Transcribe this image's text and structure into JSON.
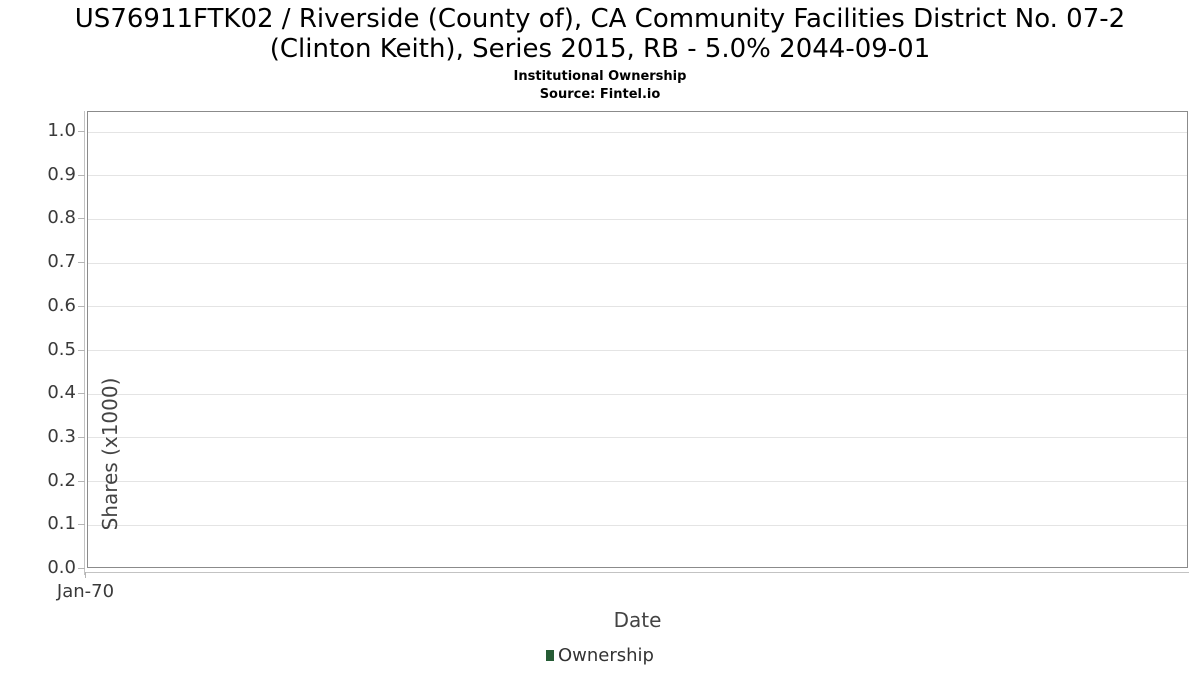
{
  "colors": {
    "background": "#ffffff",
    "title_text": "#000000",
    "tick_text": "#3a3a3a",
    "axis_label_text": "#444444",
    "legend_text": "#333333",
    "gridline": "#e4e4e4",
    "plot_border": "#8b8b8b",
    "axis_line": "#c3c3c3",
    "ownership_series": "#265c35"
  },
  "header": {
    "title_lines": [
      "US76911FTK02 / Riverside (County of), CA Community Facilities District No. 07-2",
      "(Clinton Keith), Series 2015, RB - 5.0% 2044-09-01"
    ],
    "subtitle": "Institutional Ownership",
    "source": "Source: Fintel.io"
  },
  "chart_data": {
    "type": "line",
    "title": "US76911FTK02 / Riverside (County of), CA Community Facilities District No. 07-2 (Clinton Keith), Series 2015, RB - 5.0% 2044-09-01",
    "subtitle": "Institutional Ownership",
    "source": "Source: Fintel.io",
    "xlabel": "Date",
    "ylabel": "Shares (x1000)",
    "x_tick_labels": [
      "Jan-70"
    ],
    "y_tick_labels": [
      "0.0",
      "0.1",
      "0.2",
      "0.3",
      "0.4",
      "0.5",
      "0.6",
      "0.7",
      "0.8",
      "0.9",
      "1.0"
    ],
    "y_tick_values": [
      0.0,
      0.1,
      0.2,
      0.3,
      0.4,
      0.5,
      0.6,
      0.7,
      0.8,
      0.9,
      1.0
    ],
    "ylim": [
      0.0,
      1.046
    ],
    "grid": "horizontal",
    "legend_position": "bottom-center",
    "series": [
      {
        "name": "Ownership",
        "color": "#265c35",
        "x": [],
        "values": []
      }
    ]
  }
}
